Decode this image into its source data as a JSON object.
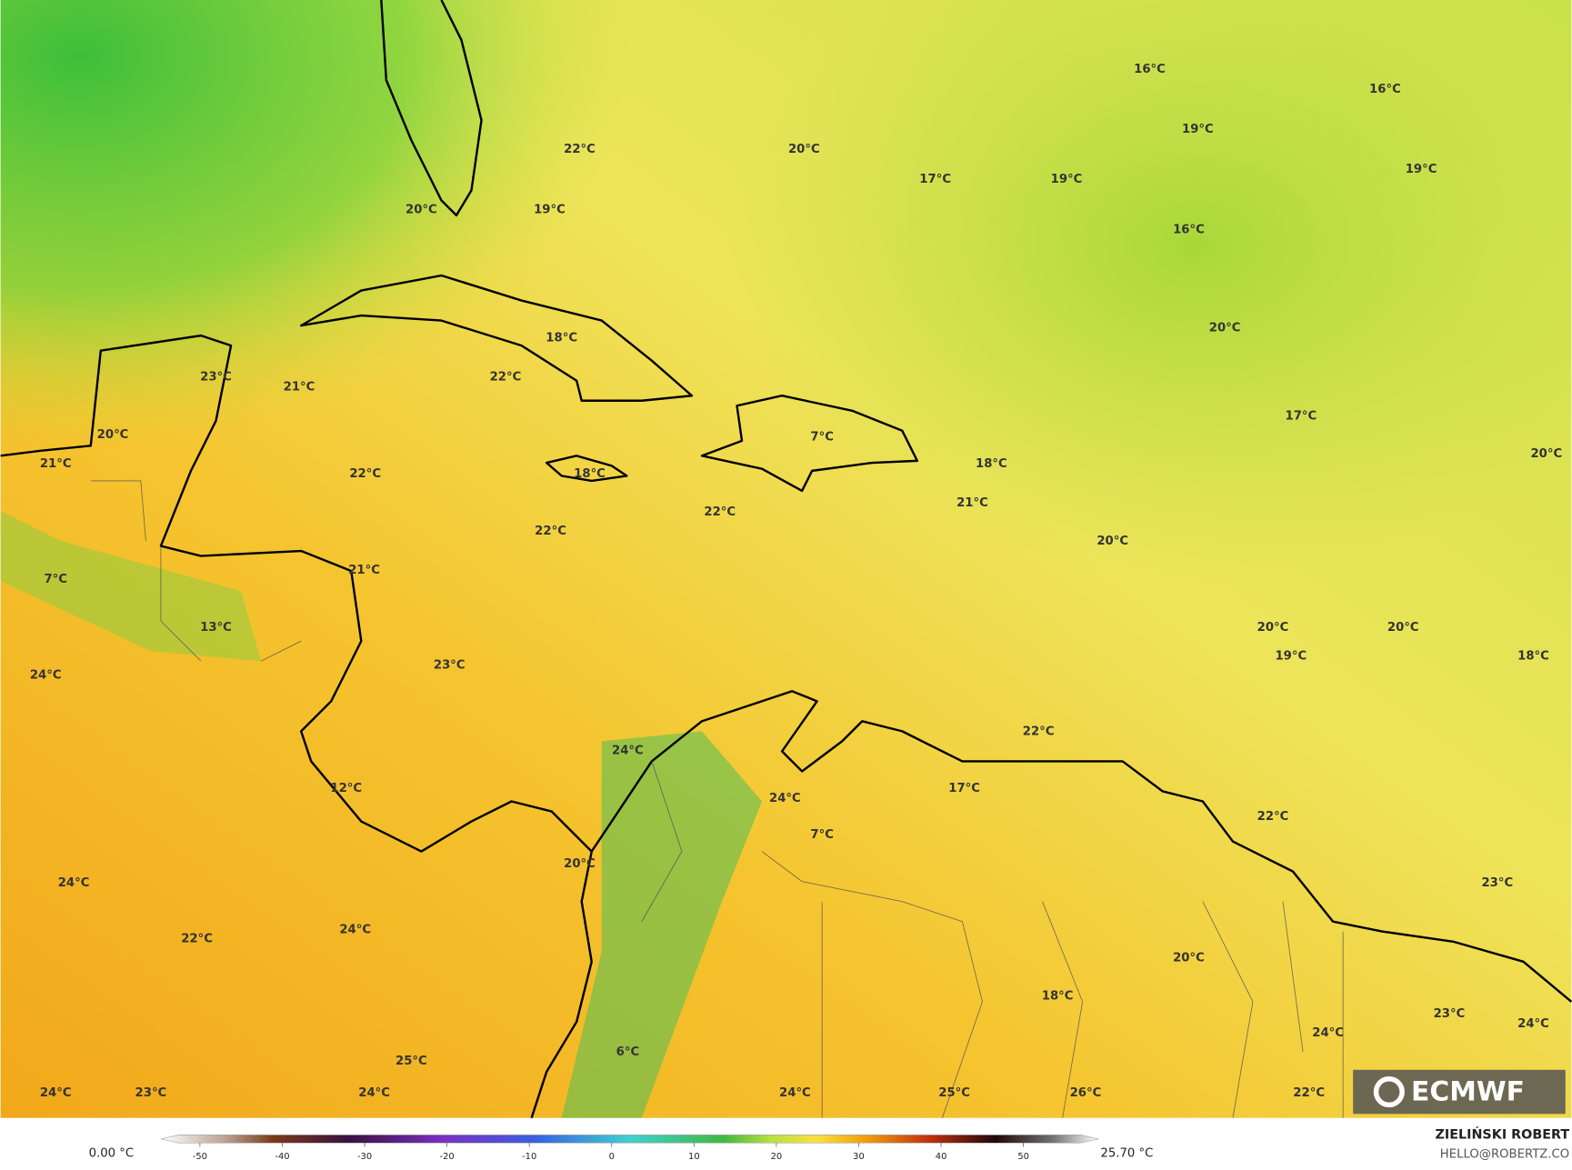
{
  "map": {
    "labels": [
      "16°C",
      "16°C",
      "22°C",
      "20°C",
      "19°C",
      "17°C",
      "19°C",
      "19°C",
      "20°C",
      "19°C",
      "16°C",
      "20°C",
      "18°C",
      "23°C",
      "21°C",
      "22°C",
      "20°C",
      "17°C",
      "7°C",
      "20°C",
      "21°C",
      "18°C",
      "22°C",
      "18°C",
      "21°C",
      "22°C",
      "22°C",
      "20°C",
      "7°C",
      "21°C",
      "13°C",
      "20°C",
      "20°C",
      "19°C",
      "18°C",
      "24°C",
      "23°C",
      "22°C",
      "24°C",
      "12°C",
      "17°C",
      "24°C",
      "7°C",
      "22°C",
      "20°C",
      "24°C",
      "23°C",
      "24°C",
      "22°C",
      "20°C",
      "18°C",
      "24°C",
      "23°C",
      "24°C",
      "6°C",
      "25°C",
      "24°C",
      "23°C",
      "24°C",
      "24°C",
      "25°C",
      "26°C",
      "22°C"
    ],
    "logo": "ECMWF"
  },
  "colorbar": {
    "ticks": [
      -50,
      -40,
      -30,
      -20,
      -10,
      0,
      10,
      20,
      30,
      40,
      50
    ],
    "min_label": "0.00 °C",
    "max_label": "25.70 °C"
  },
  "credits": {
    "author": "ZIELIŃSKI ROBERT",
    "email": "HELLO@ROBERTZ.CO"
  }
}
